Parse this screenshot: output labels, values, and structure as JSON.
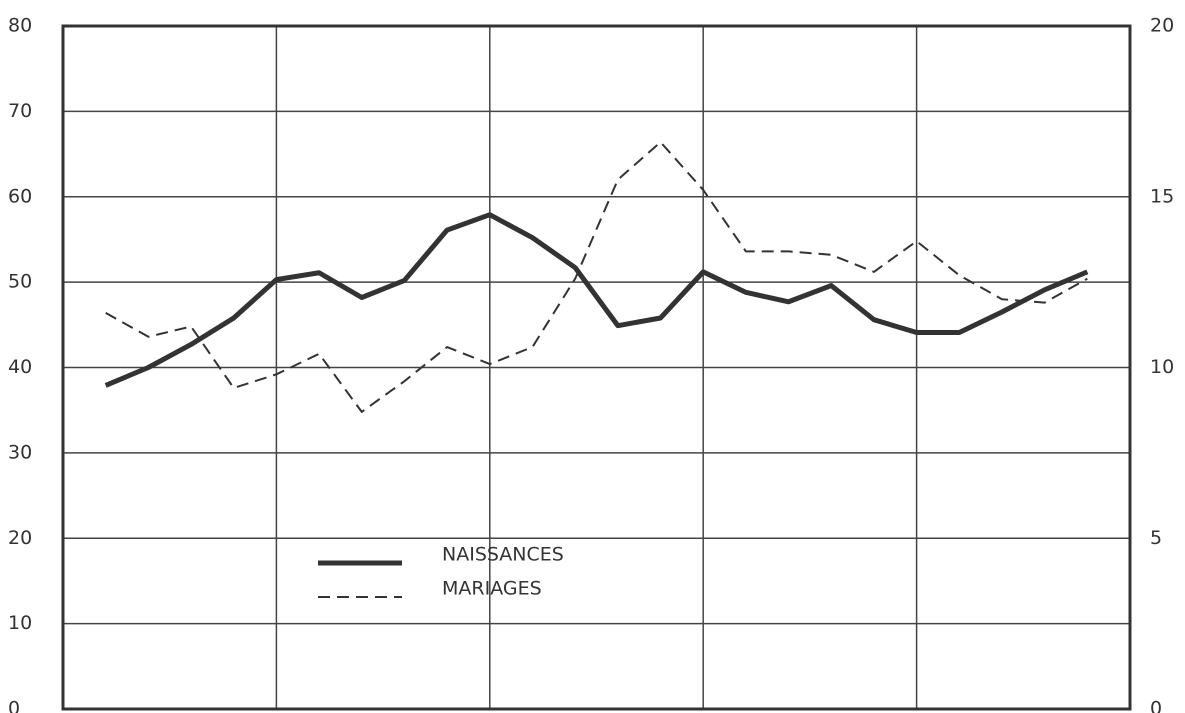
{
  "chart_data": {
    "type": "line",
    "categories": [
      null,
      null,
      null,
      null,
      null,
      null,
      null,
      null,
      null,
      null,
      null,
      null,
      null,
      null,
      null,
      null,
      null,
      null,
      null,
      null,
      null,
      null,
      null,
      null
    ],
    "series": [
      {
        "name": "NAISSANCES",
        "color": "#333333",
        "values": [
          37.9,
          40,
          42.7,
          45.8,
          50.3,
          51.1,
          48.2,
          50.2,
          56.1,
          57.9,
          55.2,
          51.7,
          44.9,
          45.8,
          51.2,
          48.8,
          47.7,
          49.6,
          45.6,
          44.1,
          44.1,
          46.5,
          49.1,
          51.2
        ]
      },
      {
        "name": "MARIAGES",
        "color": "#333333",
        "axis": "y2",
        "dashed": true,
        "values": [
          11.6,
          10.9,
          11.2,
          9.4,
          9.8,
          10.4,
          8.7,
          9.6,
          10.6,
          10.1,
          10.6,
          12.6,
          15.5,
          16.6,
          15.2,
          13.4,
          13.4,
          13.3,
          12.8,
          13.7,
          12.7,
          12,
          11.9,
          12.6
        ]
      }
    ],
    "ylim": [
      0,
      80
    ],
    "yticks": [
      0,
      10,
      20,
      30,
      40,
      50,
      60,
      70,
      80
    ],
    "y2lim": [
      0,
      20
    ],
    "y2ticks": [
      0,
      5,
      10,
      15,
      20
    ],
    "grid": true
  }
}
